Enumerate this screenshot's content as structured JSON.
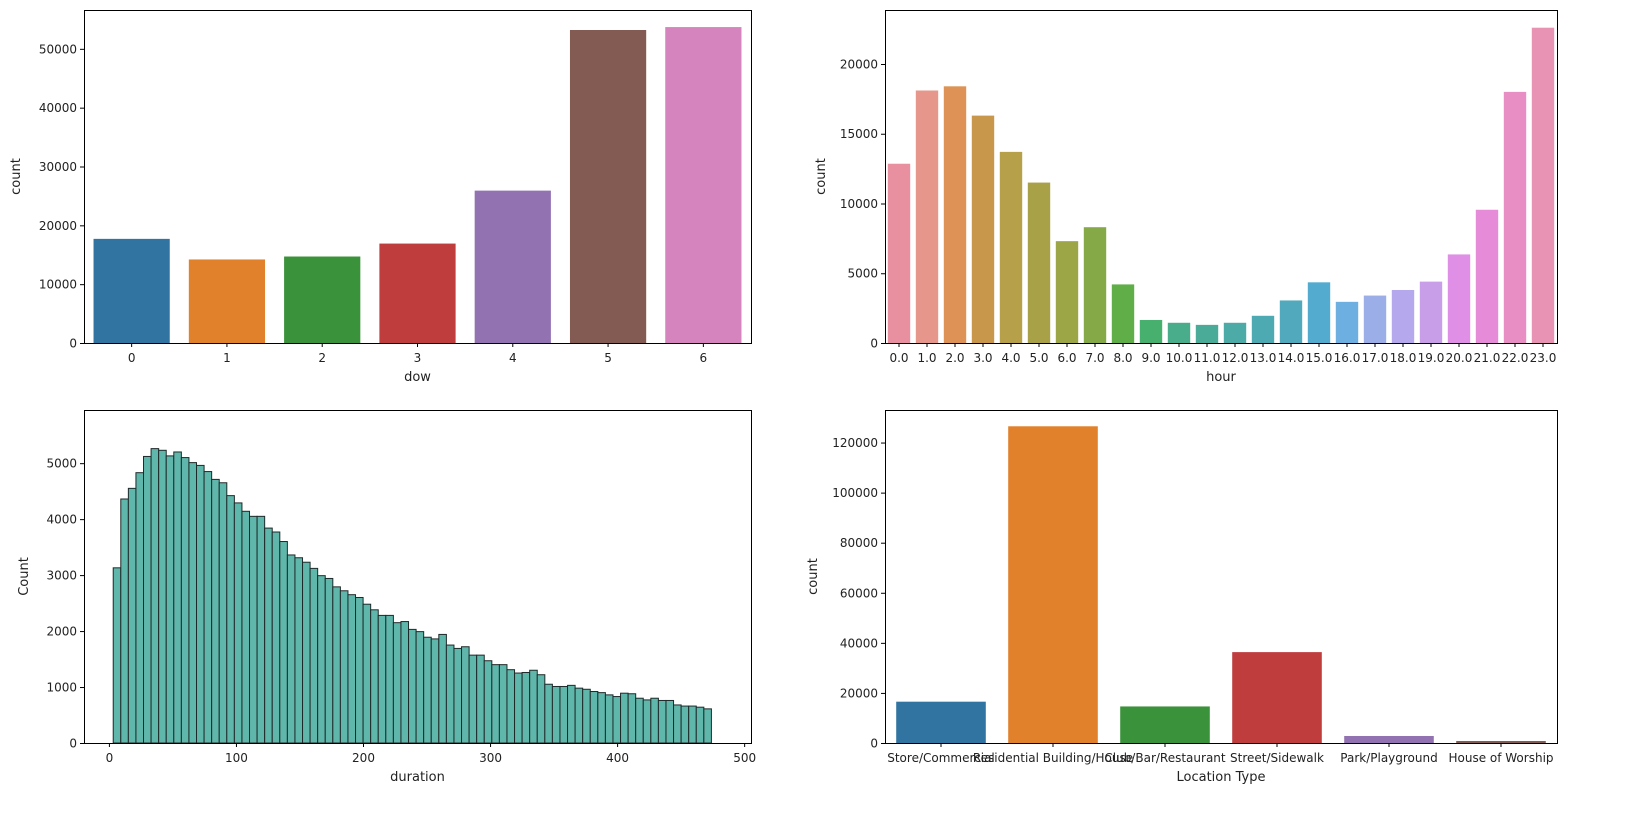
{
  "chart_data": [
    {
      "id": "dow",
      "type": "bar",
      "xlabel": "dow",
      "ylabel": "count",
      "categories": [
        "0",
        "1",
        "2",
        "3",
        "4",
        "5",
        "6"
      ],
      "values": [
        17700,
        14200,
        14700,
        16900,
        25900,
        53200,
        53700
      ],
      "colors": [
        "#3274a1",
        "#e1812c",
        "#3a923a",
        "#c03d3e",
        "#9372b2",
        "#845b53",
        "#d684bd"
      ],
      "ylim": [
        0,
        56600
      ],
      "yticks": [
        0,
        10000,
        20000,
        30000,
        40000,
        50000
      ],
      "ytick_labels": [
        "0",
        "10000",
        "20000",
        "30000",
        "40000",
        "50000"
      ],
      "grid": false
    },
    {
      "id": "hour",
      "type": "bar",
      "xlabel": "hour",
      "ylabel": "count",
      "categories": [
        "0.0",
        "1.0",
        "2.0",
        "3.0",
        "4.0",
        "5.0",
        "6.0",
        "7.0",
        "8.0",
        "9.0",
        "10.0",
        "11.0",
        "12.0",
        "13.0",
        "14.0",
        "15.0",
        "16.0",
        "17.0",
        "18.0",
        "19.0",
        "20.0",
        "21.0",
        "22.0",
        "23.0"
      ],
      "values": [
        12850,
        18100,
        18400,
        16300,
        13700,
        11500,
        7300,
        8300,
        4200,
        1650,
        1450,
        1300,
        1450,
        1950,
        3050,
        4350,
        2950,
        3400,
        3800,
        4400,
        6350,
        9550,
        18000,
        22600
      ],
      "colors": [
        "#e8909f",
        "#e6968a",
        "#de9255",
        "#c9974b",
        "#b6a04a",
        "#a9a148",
        "#9da646",
        "#84a946",
        "#5fae48",
        "#47b06f",
        "#49ad8b",
        "#4bab99",
        "#4caba6",
        "#4eaab2",
        "#50a9bc",
        "#53acd0",
        "#6eafe1",
        "#9caee7",
        "#b5a8ec",
        "#c99ee8",
        "#df8fe6",
        "#e58bd7",
        "#e88ec4",
        "#e892b4"
      ],
      "ylim": [
        0,
        23870
      ],
      "yticks": [
        0,
        5000,
        10000,
        15000,
        20000
      ],
      "ytick_labels": [
        "0",
        "5000",
        "10000",
        "15000",
        "20000"
      ],
      "grid": false
    },
    {
      "id": "duration",
      "type": "bar",
      "subtype": "histogram",
      "xlabel": "duration",
      "ylabel": "Count",
      "bin_start": 3,
      "bin_width": 5.96,
      "values": [
        3130,
        4360,
        4550,
        4830,
        5120,
        5260,
        5230,
        5130,
        5200,
        5100,
        5010,
        4960,
        4850,
        4710,
        4650,
        4420,
        4290,
        4140,
        4050,
        4050,
        3840,
        3770,
        3600,
        3360,
        3310,
        3230,
        3120,
        2990,
        2940,
        2790,
        2720,
        2650,
        2600,
        2480,
        2380,
        2280,
        2280,
        2150,
        2170,
        2030,
        1990,
        1890,
        1860,
        1940,
        1750,
        1690,
        1720,
        1570,
        1570,
        1470,
        1400,
        1400,
        1310,
        1250,
        1260,
        1300,
        1220,
        1050,
        1010,
        1010,
        1030,
        980,
        960,
        920,
        900,
        860,
        830,
        890,
        880,
        800,
        770,
        800,
        760,
        760,
        680,
        660,
        660,
        640,
        610
      ],
      "color": "#5fb6aa",
      "edgecolor": "#1f2a2a",
      "xlim": [
        -20,
        505
      ],
      "xticks": [
        0,
        100,
        200,
        300,
        400,
        500
      ],
      "xtick_labels": [
        "0",
        "100",
        "200",
        "300",
        "400",
        "500"
      ],
      "ylim": [
        0,
        5950
      ],
      "yticks": [
        0,
        1000,
        2000,
        3000,
        4000,
        5000
      ],
      "ytick_labels": [
        "0",
        "1000",
        "2000",
        "3000",
        "4000",
        "5000"
      ],
      "grid": false
    },
    {
      "id": "location",
      "type": "bar",
      "xlabel": "Location Type",
      "ylabel": "count",
      "categories": [
        "Store/Commercial",
        "Residential Building/House",
        "Club/Bar/Restaurant",
        "Street/Sidewalk",
        "Park/Playground",
        "House of Worship"
      ],
      "values": [
        16500,
        126500,
        14600,
        36300,
        2800,
        800
      ],
      "colors": [
        "#3274a1",
        "#e1812c",
        "#3a923a",
        "#c03d3e",
        "#9372b2",
        "#845b53"
      ],
      "ylim": [
        0,
        133000
      ],
      "yticks": [
        0,
        20000,
        40000,
        60000,
        80000,
        100000,
        120000
      ],
      "ytick_labels": [
        "0",
        "20000",
        "40000",
        "60000",
        "80000",
        "100000",
        "120000"
      ],
      "grid": false
    }
  ]
}
